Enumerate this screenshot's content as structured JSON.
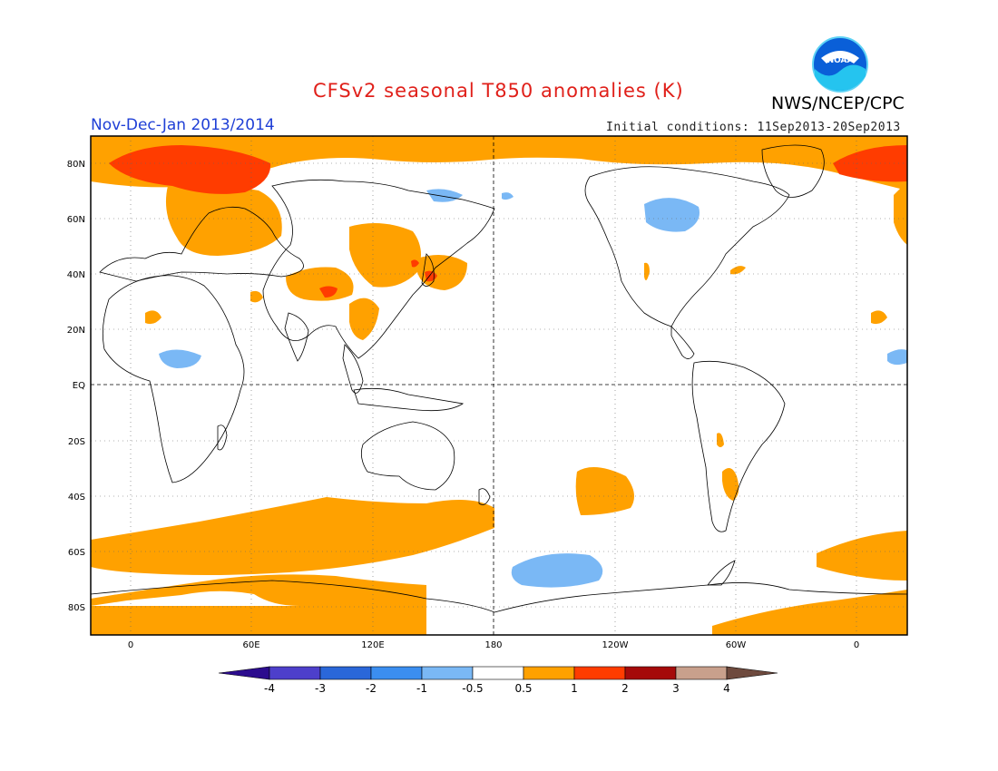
{
  "title": "CFSv2 seasonal T850 anomalies (K)",
  "agency": "NWS/NCEP/CPC",
  "logo_text": "NOAA",
  "period": "Nov-Dec-Jan 2013/2014",
  "initial_conditions": "Initial conditions: 11Sep2013-20Sep2013",
  "lat_labels": [
    "80N",
    "60N",
    "40N",
    "20N",
    "EQ",
    "20S",
    "40S",
    "60S",
    "80S"
  ],
  "lon_labels": [
    "0",
    "60E",
    "120E",
    "180",
    "120W",
    "60W",
    "0"
  ],
  "colorbar": {
    "labels": [
      "-4",
      "-3",
      "-2",
      "-1",
      "-0.5",
      "0.5",
      "1",
      "2",
      "3",
      "4"
    ],
    "colors": [
      "#2c0c8e",
      "#4d3fcb",
      "#2a67d9",
      "#3b8ef0",
      "#7ab8f5",
      "#ffffff",
      "#ffa100",
      "#ff3c00",
      "#a50a0a",
      "#c8a08c",
      "#6e4a3e"
    ]
  },
  "anomaly_colors": {
    "warm_0_5_to_1": "#ffa100",
    "warm_1_to_2": "#ff3c00",
    "cool_minus_1_to_minus_0_5": "#7ab8f5"
  }
}
